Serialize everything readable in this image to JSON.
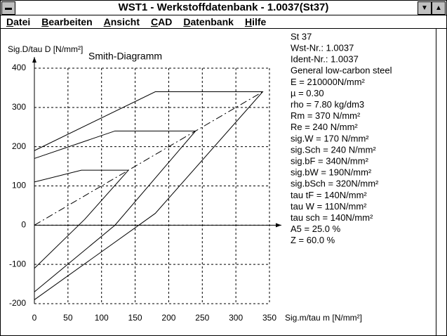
{
  "window": {
    "title": "WST1 - Werkstoffdatenbank - 1.0037(St37)"
  },
  "menu": [
    "Datei",
    "Bearbeiten",
    "Ansicht",
    "CAD",
    "Datenbank",
    "Hilfe"
  ],
  "properties": [
    "St 37",
    "Wst-Nr.: 1.0037",
    "Ident-Nr.: 1.0037",
    "General low-carbon steel",
    "E = 210000N/mm²",
    "µ = 0.30",
    "rho = 7.80 kg/dm3",
    "Rm = 370 N/mm²",
    "Re = 240 N/mm²",
    "sig.W = 170 N/mm²",
    "sig.Sch = 240 N/mm²",
    "sig.bF = 340N/mm²",
    "sig.bW = 190N/mm²",
    "sig.bSch = 320N/mm²",
    "tau tF = 140N/mm²",
    "tau W = 110N/mm²",
    "tau sch = 140N/mm²",
    "A5 = 25.0 %",
    "Z = 60.0 %"
  ],
  "chart_data": {
    "type": "line",
    "title": "Smith-Diagramm",
    "y_label": "Sig.D/tau D [N/mm²]",
    "x_label": "Sig.m/tau m [N/mm²]",
    "xlim": [
      0,
      350
    ],
    "ylim": [
      -200,
      400
    ],
    "xticks": [
      0,
      50,
      100,
      150,
      200,
      250,
      300,
      350
    ],
    "yticks": [
      -200,
      -100,
      0,
      100,
      200,
      300,
      400
    ],
    "grid": true,
    "series": [
      {
        "color": "#000000",
        "x": [
          0,
          180,
          340,
          180,
          0
        ],
        "values": [
          190,
          340,
          340,
          30,
          -190
        ]
      },
      {
        "color": "#000000",
        "x": [
          0,
          120,
          240,
          120,
          0
        ],
        "values": [
          170,
          240,
          240,
          0,
          -170
        ]
      },
      {
        "color": "#000000",
        "x": [
          0,
          70,
          140,
          75,
          0
        ],
        "values": [
          110,
          140,
          140,
          15,
          -110
        ]
      },
      {
        "color": "#000000",
        "dashed": true,
        "x": [
          0,
          340
        ],
        "values": [
          0,
          340
        ]
      }
    ]
  }
}
